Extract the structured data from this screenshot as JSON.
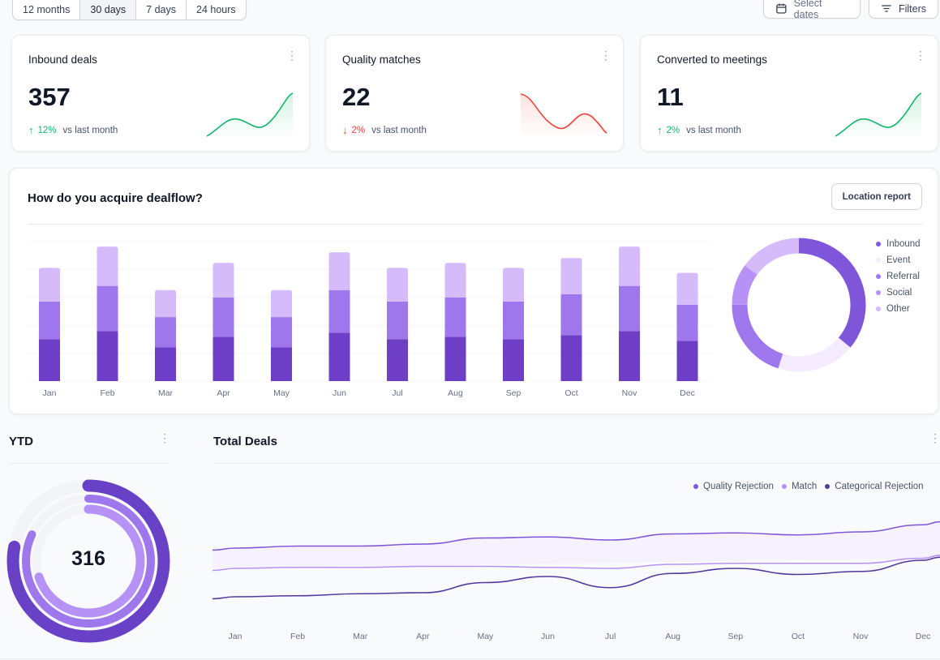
{
  "time_filter": {
    "options": [
      "12 months",
      "30 days",
      "7 days",
      "24 hours"
    ],
    "active_index": 1
  },
  "toolbar": {
    "select_dates_label": "Select dates",
    "filters_label": "Filters"
  },
  "stats": [
    {
      "title": "Inbound deals",
      "value": "357",
      "change": "12%",
      "direction": "up",
      "comparison": "vs last month",
      "color": "#12b76a"
    },
    {
      "title": "Quality matches",
      "value": "22",
      "change": "2%",
      "direction": "down",
      "comparison": "vs last month",
      "color": "#f04438"
    },
    {
      "title": "Converted to meetings",
      "value": "11",
      "change": "2%",
      "direction": "up",
      "comparison": "vs last month",
      "color": "#12b76a"
    }
  ],
  "dealflow": {
    "title": "How do you acquire dealflow?",
    "location_button": "Location report",
    "legend": [
      {
        "name": "Inbound",
        "color": "#7f56d9"
      },
      {
        "name": "Event",
        "color": "#f4ebff"
      },
      {
        "name": "Referral",
        "color": "#9e77ed"
      },
      {
        "name": "Social",
        "color": "#b692f6"
      },
      {
        "name": "Other",
        "color": "#d6bbfb"
      }
    ]
  },
  "ytd": {
    "title": "YTD",
    "value": "316"
  },
  "total_deals": {
    "title": "Total Deals"
  },
  "chart_data": [
    {
      "type": "bar",
      "stacked": true,
      "categories": [
        "Jan",
        "Feb",
        "Mar",
        "Apr",
        "May",
        "Jun",
        "Jul",
        "Aug",
        "Sep",
        "Oct",
        "Nov",
        "Dec"
      ],
      "series": [
        {
          "values": [
            51,
            61,
            41,
            54,
            41,
            59,
            51,
            54,
            51,
            56,
            61,
            49
          ],
          "color": "#6e3fc6"
        },
        {
          "values": [
            46,
            55,
            37,
            48,
            37,
            52,
            46,
            48,
            46,
            50,
            55,
            44
          ],
          "color": "#9e77ed"
        },
        {
          "values": [
            41,
            48,
            33,
            42,
            33,
            46,
            41,
            42,
            41,
            44,
            48,
            39
          ],
          "color": "#d6bbfb"
        }
      ],
      "ylim": [
        0,
        170
      ],
      "grid": true
    },
    {
      "type": "pie",
      "donut": true,
      "labels": [
        "Inbound",
        "Event",
        "Referral",
        "Social",
        "Other"
      ],
      "values": [
        36,
        19,
        20,
        10,
        15
      ],
      "colors": [
        "#7f56d9",
        "#f4ebff",
        "#9e77ed",
        "#b692f6",
        "#d6bbfb"
      ]
    },
    {
      "type": "pie",
      "radial": true,
      "center_label": "316",
      "values": [
        0.78,
        0.82,
        0.7
      ],
      "colors": [
        "#6941c6",
        "#9e77ed",
        "#b692f6"
      ]
    },
    {
      "type": "area",
      "x": [
        "Jan",
        "Feb",
        "Mar",
        "Apr",
        "May",
        "Jun",
        "Jul",
        "Aug",
        "Sep",
        "Oct",
        "Nov",
        "Dec"
      ],
      "series": [
        {
          "name": "Quality Rejection",
          "color": "#7f56d9",
          "values": [
            72,
            74,
            74,
            76,
            82,
            83,
            80,
            86,
            87,
            85,
            88,
            95
          ]
        },
        {
          "name": "Match",
          "color": "#b692f6",
          "values": [
            52,
            53,
            53,
            54,
            54,
            53,
            52,
            56,
            57,
            57,
            57,
            62
          ]
        },
        {
          "name": "Categorical Rejection",
          "color": "#53389e",
          "values": [
            24,
            25,
            27,
            28,
            38,
            44,
            33,
            47,
            52,
            46,
            49,
            60
          ]
        }
      ],
      "ylim": [
        0,
        120
      ],
      "grid": true,
      "legend_position": "top-right"
    }
  ]
}
